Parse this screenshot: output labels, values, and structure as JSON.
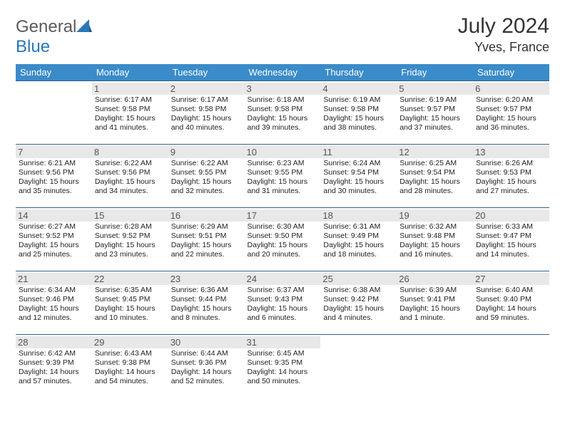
{
  "brand": {
    "part1": "General",
    "part2": "Blue"
  },
  "title": "July 2024",
  "location": "Yves, France",
  "colors": {
    "header_bg": "#3a8bc9",
    "header_text": "#ffffff",
    "border": "#2d5f8a",
    "daynum_bg": "#e8e8e8",
    "text": "#222222"
  },
  "days_of_week": [
    "Sunday",
    "Monday",
    "Tuesday",
    "Wednesday",
    "Thursday",
    "Friday",
    "Saturday"
  ],
  "weeks": [
    [
      null,
      {
        "n": "1",
        "sr": "Sunrise: 6:17 AM",
        "ss": "Sunset: 9:58 PM",
        "dl1": "Daylight: 15 hours",
        "dl2": "and 41 minutes."
      },
      {
        "n": "2",
        "sr": "Sunrise: 6:17 AM",
        "ss": "Sunset: 9:58 PM",
        "dl1": "Daylight: 15 hours",
        "dl2": "and 40 minutes."
      },
      {
        "n": "3",
        "sr": "Sunrise: 6:18 AM",
        "ss": "Sunset: 9:58 PM",
        "dl1": "Daylight: 15 hours",
        "dl2": "and 39 minutes."
      },
      {
        "n": "4",
        "sr": "Sunrise: 6:19 AM",
        "ss": "Sunset: 9:58 PM",
        "dl1": "Daylight: 15 hours",
        "dl2": "and 38 minutes."
      },
      {
        "n": "5",
        "sr": "Sunrise: 6:19 AM",
        "ss": "Sunset: 9:57 PM",
        "dl1": "Daylight: 15 hours",
        "dl2": "and 37 minutes."
      },
      {
        "n": "6",
        "sr": "Sunrise: 6:20 AM",
        "ss": "Sunset: 9:57 PM",
        "dl1": "Daylight: 15 hours",
        "dl2": "and 36 minutes."
      }
    ],
    [
      {
        "n": "7",
        "sr": "Sunrise: 6:21 AM",
        "ss": "Sunset: 9:56 PM",
        "dl1": "Daylight: 15 hours",
        "dl2": "and 35 minutes."
      },
      {
        "n": "8",
        "sr": "Sunrise: 6:22 AM",
        "ss": "Sunset: 9:56 PM",
        "dl1": "Daylight: 15 hours",
        "dl2": "and 34 minutes."
      },
      {
        "n": "9",
        "sr": "Sunrise: 6:22 AM",
        "ss": "Sunset: 9:55 PM",
        "dl1": "Daylight: 15 hours",
        "dl2": "and 32 minutes."
      },
      {
        "n": "10",
        "sr": "Sunrise: 6:23 AM",
        "ss": "Sunset: 9:55 PM",
        "dl1": "Daylight: 15 hours",
        "dl2": "and 31 minutes."
      },
      {
        "n": "11",
        "sr": "Sunrise: 6:24 AM",
        "ss": "Sunset: 9:54 PM",
        "dl1": "Daylight: 15 hours",
        "dl2": "and 30 minutes."
      },
      {
        "n": "12",
        "sr": "Sunrise: 6:25 AM",
        "ss": "Sunset: 9:54 PM",
        "dl1": "Daylight: 15 hours",
        "dl2": "and 28 minutes."
      },
      {
        "n": "13",
        "sr": "Sunrise: 6:26 AM",
        "ss": "Sunset: 9:53 PM",
        "dl1": "Daylight: 15 hours",
        "dl2": "and 27 minutes."
      }
    ],
    [
      {
        "n": "14",
        "sr": "Sunrise: 6:27 AM",
        "ss": "Sunset: 9:52 PM",
        "dl1": "Daylight: 15 hours",
        "dl2": "and 25 minutes."
      },
      {
        "n": "15",
        "sr": "Sunrise: 6:28 AM",
        "ss": "Sunset: 9:52 PM",
        "dl1": "Daylight: 15 hours",
        "dl2": "and 23 minutes."
      },
      {
        "n": "16",
        "sr": "Sunrise: 6:29 AM",
        "ss": "Sunset: 9:51 PM",
        "dl1": "Daylight: 15 hours",
        "dl2": "and 22 minutes."
      },
      {
        "n": "17",
        "sr": "Sunrise: 6:30 AM",
        "ss": "Sunset: 9:50 PM",
        "dl1": "Daylight: 15 hours",
        "dl2": "and 20 minutes."
      },
      {
        "n": "18",
        "sr": "Sunrise: 6:31 AM",
        "ss": "Sunset: 9:49 PM",
        "dl1": "Daylight: 15 hours",
        "dl2": "and 18 minutes."
      },
      {
        "n": "19",
        "sr": "Sunrise: 6:32 AM",
        "ss": "Sunset: 9:48 PM",
        "dl1": "Daylight: 15 hours",
        "dl2": "and 16 minutes."
      },
      {
        "n": "20",
        "sr": "Sunrise: 6:33 AM",
        "ss": "Sunset: 9:47 PM",
        "dl1": "Daylight: 15 hours",
        "dl2": "and 14 minutes."
      }
    ],
    [
      {
        "n": "21",
        "sr": "Sunrise: 6:34 AM",
        "ss": "Sunset: 9:46 PM",
        "dl1": "Daylight: 15 hours",
        "dl2": "and 12 minutes."
      },
      {
        "n": "22",
        "sr": "Sunrise: 6:35 AM",
        "ss": "Sunset: 9:45 PM",
        "dl1": "Daylight: 15 hours",
        "dl2": "and 10 minutes."
      },
      {
        "n": "23",
        "sr": "Sunrise: 6:36 AM",
        "ss": "Sunset: 9:44 PM",
        "dl1": "Daylight: 15 hours",
        "dl2": "and 8 minutes."
      },
      {
        "n": "24",
        "sr": "Sunrise: 6:37 AM",
        "ss": "Sunset: 9:43 PM",
        "dl1": "Daylight: 15 hours",
        "dl2": "and 6 minutes."
      },
      {
        "n": "25",
        "sr": "Sunrise: 6:38 AM",
        "ss": "Sunset: 9:42 PM",
        "dl1": "Daylight: 15 hours",
        "dl2": "and 4 minutes."
      },
      {
        "n": "26",
        "sr": "Sunrise: 6:39 AM",
        "ss": "Sunset: 9:41 PM",
        "dl1": "Daylight: 15 hours",
        "dl2": "and 1 minute."
      },
      {
        "n": "27",
        "sr": "Sunrise: 6:40 AM",
        "ss": "Sunset: 9:40 PM",
        "dl1": "Daylight: 14 hours",
        "dl2": "and 59 minutes."
      }
    ],
    [
      {
        "n": "28",
        "sr": "Sunrise: 6:42 AM",
        "ss": "Sunset: 9:39 PM",
        "dl1": "Daylight: 14 hours",
        "dl2": "and 57 minutes."
      },
      {
        "n": "29",
        "sr": "Sunrise: 6:43 AM",
        "ss": "Sunset: 9:38 PM",
        "dl1": "Daylight: 14 hours",
        "dl2": "and 54 minutes."
      },
      {
        "n": "30",
        "sr": "Sunrise: 6:44 AM",
        "ss": "Sunset: 9:36 PM",
        "dl1": "Daylight: 14 hours",
        "dl2": "and 52 minutes."
      },
      {
        "n": "31",
        "sr": "Sunrise: 6:45 AM",
        "ss": "Sunset: 9:35 PM",
        "dl1": "Daylight: 14 hours",
        "dl2": "and 50 minutes."
      },
      null,
      null,
      null
    ]
  ]
}
